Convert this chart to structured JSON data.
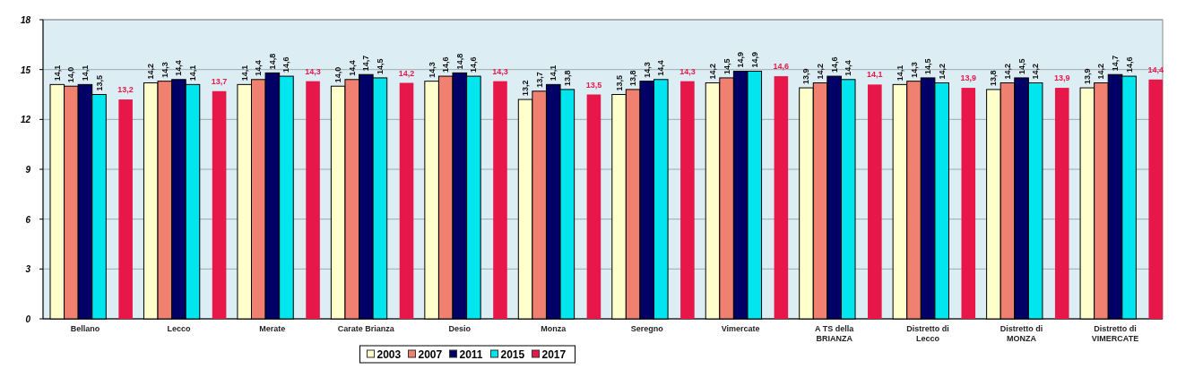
{
  "chart_data": {
    "type": "bar",
    "categories": [
      "Bellano",
      "Lecco",
      "Merate",
      "Carate Brianza",
      "Desio",
      "Monza",
      "Seregno",
      "Vimercate",
      "A TS della BRIANZA",
      "Distretto di Lecco",
      "Distretto di MONZA",
      "Distretto di VIMERCATE"
    ],
    "series": [
      {
        "name": "2003",
        "color": "#ffffcc",
        "values": [
          14.1,
          14.2,
          14.1,
          14.0,
          14.3,
          13.2,
          13.5,
          14.2,
          13.9,
          14.1,
          13.8,
          13.9
        ],
        "value_labels": [
          "14,1",
          "14,2",
          "14,1",
          "14,0",
          "14,3",
          "13,2",
          "13,5",
          "14,2",
          "13,9",
          "14,1",
          "13,8",
          "13,9"
        ]
      },
      {
        "name": "2007",
        "color": "#f08070",
        "values": [
          14.0,
          14.3,
          14.4,
          14.4,
          14.6,
          13.7,
          13.8,
          14.5,
          14.2,
          14.3,
          14.2,
          14.2
        ],
        "value_labels": [
          "14,0",
          "14,3",
          "14,4",
          "14,4",
          "14,6",
          "13,7",
          "13,8",
          "14,5",
          "14,2",
          "14,3",
          "14,2",
          "14,2"
        ]
      },
      {
        "name": "2011",
        "color": "#000066",
        "values": [
          14.1,
          14.4,
          14.8,
          14.7,
          14.8,
          14.1,
          14.3,
          14.9,
          14.6,
          14.5,
          14.5,
          14.7
        ],
        "value_labels": [
          "14,1",
          "14,4",
          "14,8",
          "14,7",
          "14,8",
          "14,1",
          "14,3",
          "14,9",
          "14,6",
          "14,5",
          "14,5",
          "14,7"
        ]
      },
      {
        "name": "2015",
        "color": "#00e5ee",
        "values": [
          13.5,
          14.1,
          14.6,
          14.5,
          14.6,
          13.8,
          14.4,
          14.9,
          14.4,
          14.2,
          14.2,
          14.6
        ],
        "value_labels": [
          "13,5",
          "14,1",
          "14,6",
          "14,5",
          "14,6",
          "13,8",
          "14,4",
          "14,9",
          "14,4",
          "14,2",
          "14,2",
          "14,6"
        ]
      },
      {
        "name": "2017",
        "color": "#e8174a",
        "values": [
          13.2,
          13.7,
          14.3,
          14.2,
          14.3,
          13.5,
          14.3,
          14.6,
          14.1,
          13.9,
          13.9,
          14.4
        ],
        "value_labels": [
          "13,2",
          "13,7",
          "14,3",
          "14,2",
          "14,3",
          "13,5",
          "14,3",
          "14,6",
          "14,1",
          "13,9",
          "13,9",
          "14,4"
        ]
      }
    ],
    "ylim": [
      0,
      18
    ],
    "yticks": [
      0,
      3,
      6,
      9,
      12,
      15,
      18
    ],
    "grid": "y",
    "legend": "bottom"
  }
}
